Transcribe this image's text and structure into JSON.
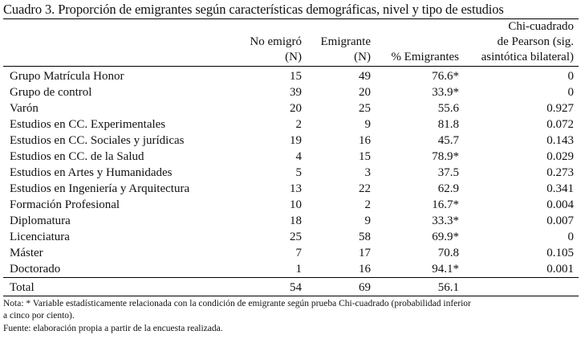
{
  "caption": "Cuadro 3. Proporción de emigrantes según características demográficas, nivel y tipo de estudios",
  "headers": {
    "no_emigro": [
      "No emigró",
      "(N)"
    ],
    "emigrante": [
      "Emigrante",
      "(N)"
    ],
    "pct": "% Emigrantes",
    "chi": [
      "Chi-cuadrado",
      "de Pearson (sig.",
      "asintótica bilateral)"
    ]
  },
  "rows": [
    {
      "label": "Grupo Matrícula Honor",
      "no_emigro": "15",
      "emigrante": "49",
      "pct": "76.6*",
      "chi": "0"
    },
    {
      "label": "Grupo de control",
      "no_emigro": "39",
      "emigrante": "20",
      "pct": "33.9*",
      "chi": "0"
    },
    {
      "label": "Varón",
      "no_emigro": "20",
      "emigrante": "25",
      "pct": "55.6",
      "chi": "0.927"
    },
    {
      "label": "Estudios en CC. Experimentales",
      "no_emigro": "2",
      "emigrante": "9",
      "pct": "81.8",
      "chi": "0.072"
    },
    {
      "label": "Estudios en CC. Sociales y jurídicas",
      "no_emigro": "19",
      "emigrante": "16",
      "pct": "45.7",
      "chi": "0.143"
    },
    {
      "label": "Estudios en CC. de la Salud",
      "no_emigro": "4",
      "emigrante": "15",
      "pct": "78.9*",
      "chi": "0.029"
    },
    {
      "label": "Estudios en Artes y Humanidades",
      "no_emigro": "5",
      "emigrante": "3",
      "pct": "37.5",
      "chi": "0.273"
    },
    {
      "label": "Estudios en Ingeniería y Arquitectura",
      "no_emigro": "13",
      "emigrante": "22",
      "pct": "62.9",
      "chi": "0.341"
    },
    {
      "label": "Formación Profesional",
      "no_emigro": "10",
      "emigrante": "2",
      "pct": "16.7*",
      "chi": "0.004"
    },
    {
      "label": "Diplomatura",
      "no_emigro": "18",
      "emigrante": "9",
      "pct": "33.3*",
      "chi": "0.007"
    },
    {
      "label": "Licenciatura",
      "no_emigro": "25",
      "emigrante": "58",
      "pct": "69.9*",
      "chi": "0"
    },
    {
      "label": "Máster",
      "no_emigro": "7",
      "emigrante": "17",
      "pct": "70.8",
      "chi": "0.105"
    },
    {
      "label": "Doctorado",
      "no_emigro": "1",
      "emigrante": "16",
      "pct": "94.1*",
      "chi": "0.001"
    }
  ],
  "total": {
    "label": "Total",
    "no_emigro": "54",
    "emigrante": "69",
    "pct": "56.1",
    "chi": ""
  },
  "notes": [
    "Nota: * Variable estadísticamente relacionada con la condición de emigrante según prueba Chi-cuadrado (probabilidad inferior",
    "a cinco por ciento).",
    "Fuente: elaboración propia a partir de la encuesta realizada."
  ]
}
